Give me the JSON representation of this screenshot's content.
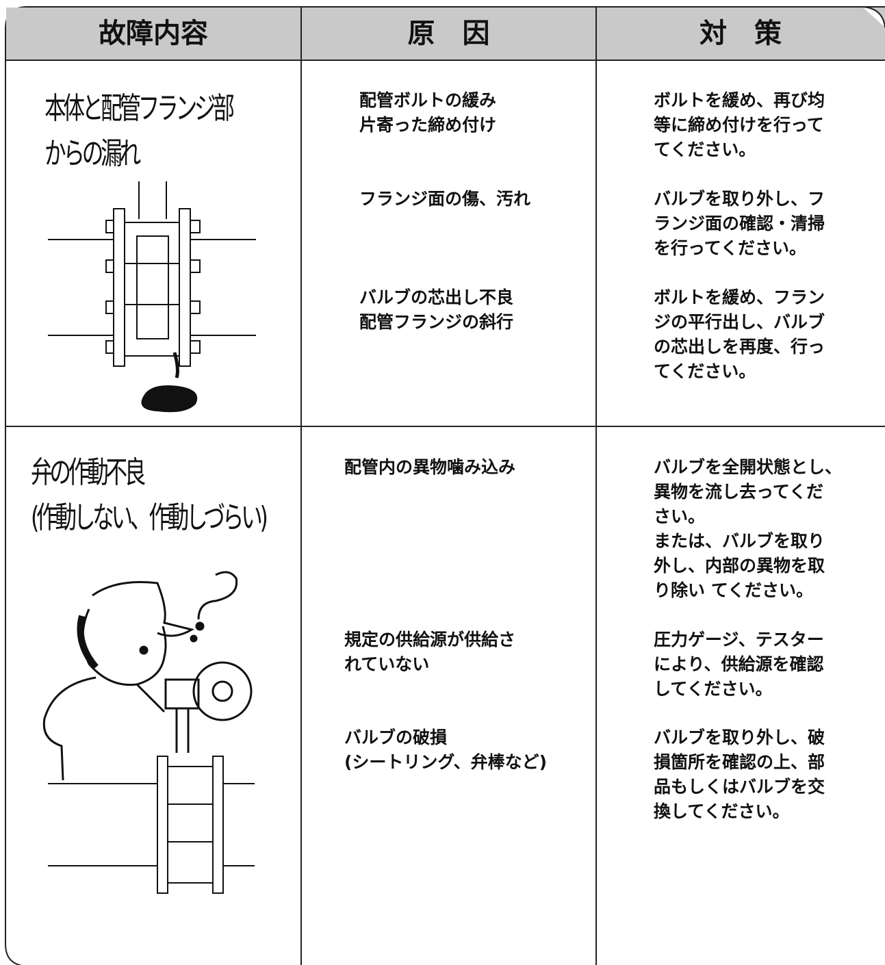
{
  "header": {
    "fault": "故障内容",
    "cause": "原　因",
    "remedy": "対　策"
  },
  "rows": [
    {
      "fault": [
        "本体と配管フランジ部",
        "からの漏れ"
      ],
      "items": [
        {
          "cause": [
            "配管ボルトの緩み",
            "片寄った締め付け"
          ],
          "remedy": [
            "ボルトを緩め、再び均",
            "等に締め付けを行って",
            "てください。"
          ]
        },
        {
          "cause": [
            "フランジ面の傷、汚れ"
          ],
          "remedy": [
            "バルブを取り外し、フ",
            "ランジ面の確認・清掃",
            "を行ってください。"
          ]
        },
        {
          "cause": [
            "バルブの芯出し不良",
            "配管フランジの斜行"
          ],
          "remedy": [
            "ボルトを緩め、フラン",
            "ジの平行出し、バルブ",
            "の芯出しを再度、行っ",
            "てください。"
          ]
        }
      ]
    },
    {
      "fault": [
        "弁の作動不良",
        "(作動しない、作動しづらい)"
      ],
      "items": [
        {
          "cause": [
            "配管内の異物噛み込み"
          ],
          "remedy": [
            "バルブを全開状態とし、",
            "異物を流し去ってくだ",
            "さい。",
            "または、バルブを取り",
            "外し、内部の異物を取",
            "り除い てください。"
          ]
        },
        {
          "cause": [
            "規定の供給源が供給さ",
            "れていない"
          ],
          "remedy": [
            "圧力ゲージ、テスター",
            "により、供給源を確認",
            "してください。"
          ]
        },
        {
          "cause": [
            "バルブの破損",
            "(シートリング、弁棒など)"
          ],
          "remedy": [
            "バルブを取り外し、破",
            "損箇所を確認の上、部",
            "品もしくはバルブを交",
            "換してください。"
          ]
        }
      ]
    }
  ]
}
